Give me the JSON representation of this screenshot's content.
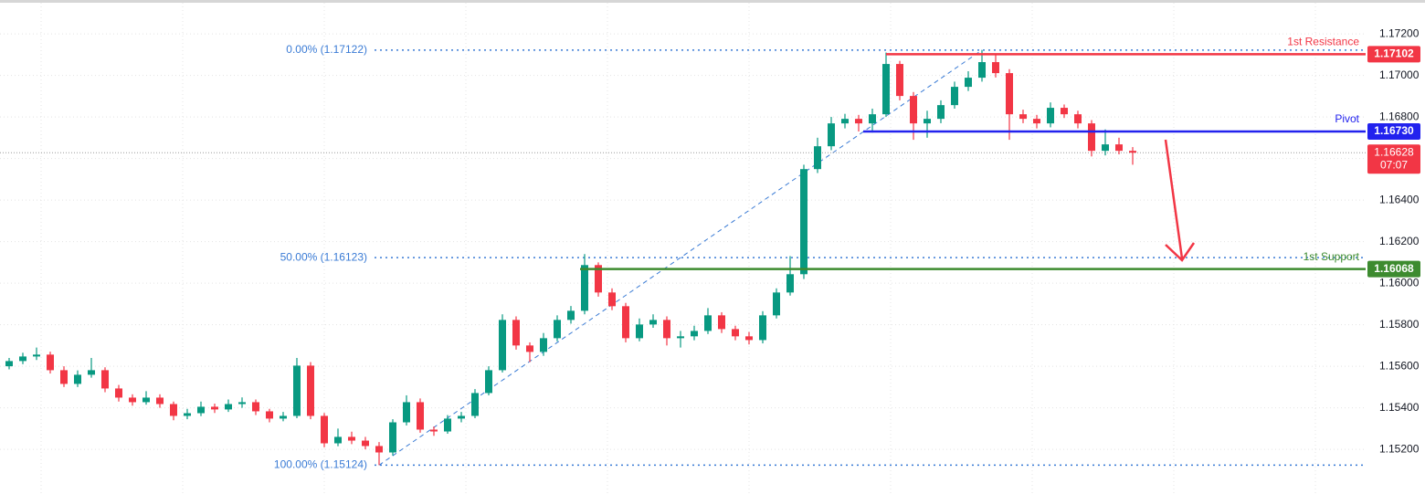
{
  "chart_data": {
    "type": "candlestick",
    "up_color": "#089981",
    "down_color": "#f23645",
    "grid": true,
    "ylim": [
      1.14985,
      1.17363
    ],
    "yticks": [
      {
        "value": 1.152,
        "label": "1.15200"
      },
      {
        "value": 1.154,
        "label": "1.15400"
      },
      {
        "value": 1.156,
        "label": "1.15600"
      },
      {
        "value": 1.158,
        "label": "1.15800"
      },
      {
        "value": 1.16,
        "label": "1.16000"
      },
      {
        "value": 1.162,
        "label": "1.16200"
      },
      {
        "value": 1.164,
        "label": "1.16400"
      },
      {
        "value": 1.166,
        "label": "1.16600"
      },
      {
        "value": 1.168,
        "label": "1.16800"
      },
      {
        "value": 1.17,
        "label": "1.17000"
      },
      {
        "value": 1.172,
        "label": "1.17200"
      }
    ],
    "open": [
      1.156,
      1.15625,
      1.15647,
      1.15656,
      1.15581,
      1.15515,
      1.15559,
      1.15581,
      1.15493,
      1.15449,
      1.15427,
      1.15449,
      1.15418,
      1.15361,
      1.15374,
      1.15405,
      1.15392,
      1.15418,
      1.15427,
      1.15383,
      1.15348,
      1.15361,
      1.15603,
      1.15361,
      1.15229,
      1.1526,
      1.15242,
      1.15216,
      1.15185,
      1.1533,
      1.15427,
      1.15295,
      1.15286,
      1.15348,
      1.15361,
      1.15471,
      1.15581,
      1.15823,
      1.157,
      1.15669,
      1.15735,
      1.15823,
      1.15867,
      1.16087,
      1.15955,
      1.15889,
      1.15735,
      1.15801,
      1.15823,
      1.15735,
      1.15744,
      1.1577,
      1.15845,
      1.15779,
      1.15744,
      1.15726,
      1.15845,
      1.15955,
      1.16043,
      1.16549,
      1.16659,
      1.16769,
      1.16791,
      1.16769,
      1.16813,
      1.17055,
      1.16901,
      1.16769,
      1.16791,
      1.16857,
      1.16945,
      1.16989,
      1.17064,
      1.17011,
      1.16813,
      1.16791,
      1.16769,
      1.16844,
      1.16813,
      1.16769,
      1.16637,
      1.16668,
      1.16637
    ],
    "high": [
      1.1564,
      1.15665,
      1.1569,
      1.1567,
      1.156,
      1.1558,
      1.1564,
      1.15595,
      1.1551,
      1.15465,
      1.1548,
      1.15465,
      1.1543,
      1.15395,
      1.1543,
      1.1542,
      1.1544,
      1.1545,
      1.1544,
      1.15395,
      1.1538,
      1.1564,
      1.1562,
      1.15375,
      1.153,
      1.15285,
      1.1526,
      1.15235,
      1.15345,
      1.1546,
      1.15445,
      1.1531,
      1.15365,
      1.1538,
      1.1549,
      1.156,
      1.1585,
      1.1584,
      1.15715,
      1.1576,
      1.15845,
      1.1589,
      1.1614,
      1.161,
      1.15975,
      1.15905,
      1.1583,
      1.1585,
      1.1584,
      1.1577,
      1.15795,
      1.1588,
      1.1586,
      1.15795,
      1.15765,
      1.15865,
      1.15975,
      1.1613,
      1.1657,
      1.167,
      1.168,
      1.16815,
      1.1681,
      1.1684,
      1.1711,
      1.1707,
      1.1692,
      1.1683,
      1.1688,
      1.1697,
      1.1702,
      1.17122,
      1.171,
      1.1703,
      1.16835,
      1.1681,
      1.1687,
      1.1686,
      1.1683,
      1.16785,
      1.1674,
      1.167,
      1.16655
    ],
    "low": [
      1.15585,
      1.1561,
      1.1563,
      1.15565,
      1.155,
      1.155,
      1.15545,
      1.15475,
      1.1543,
      1.1541,
      1.15415,
      1.154,
      1.1534,
      1.15345,
      1.1536,
      1.15375,
      1.1538,
      1.154,
      1.15365,
      1.1533,
      1.15335,
      1.1535,
      1.15345,
      1.1521,
      1.15215,
      1.15225,
      1.152,
      1.15124,
      1.1517,
      1.15315,
      1.1528,
      1.15265,
      1.15275,
      1.1533,
      1.1535,
      1.1546,
      1.1557,
      1.1568,
      1.1562,
      1.1565,
      1.1572,
      1.15805,
      1.1585,
      1.15935,
      1.1587,
      1.15715,
      1.1572,
      1.15785,
      1.157,
      1.1569,
      1.15725,
      1.15755,
      1.1576,
      1.15725,
      1.15705,
      1.1571,
      1.1583,
      1.1594,
      1.1602,
      1.1653,
      1.1664,
      1.16745,
      1.1673,
      1.16725,
      1.168,
      1.1688,
      1.1669,
      1.167,
      1.1677,
      1.1684,
      1.16925,
      1.1697,
      1.1699,
      1.1669,
      1.1677,
      1.16745,
      1.1675,
      1.16795,
      1.16745,
      1.1661,
      1.16615,
      1.1662,
      1.1657
    ],
    "close": [
      1.15625,
      1.15647,
      1.15656,
      1.15581,
      1.15515,
      1.15559,
      1.15581,
      1.15493,
      1.15449,
      1.15427,
      1.15449,
      1.15418,
      1.15361,
      1.15374,
      1.15405,
      1.15392,
      1.15418,
      1.15427,
      1.15383,
      1.15348,
      1.15361,
      1.15603,
      1.15361,
      1.15229,
      1.1526,
      1.15242,
      1.15216,
      1.15185,
      1.1533,
      1.15427,
      1.15295,
      1.15286,
      1.15348,
      1.15361,
      1.15471,
      1.15581,
      1.15823,
      1.157,
      1.15669,
      1.15735,
      1.15823,
      1.15867,
      1.16087,
      1.15955,
      1.15889,
      1.15735,
      1.15801,
      1.15823,
      1.15735,
      1.15744,
      1.1577,
      1.15845,
      1.15779,
      1.15744,
      1.15726,
      1.15845,
      1.15955,
      1.16043,
      1.16549,
      1.16659,
      1.16769,
      1.16791,
      1.16769,
      1.16813,
      1.17055,
      1.16901,
      1.16769,
      1.16791,
      1.16857,
      1.16945,
      1.16989,
      1.17064,
      1.17011,
      1.16813,
      1.16791,
      1.16769,
      1.16844,
      1.16813,
      1.16769,
      1.16637,
      1.16668,
      1.16637,
      1.16628
    ],
    "levels": [
      {
        "name": "1st Resistance",
        "price": {
          "value": 1.17102,
          "label": "1.17102"
        },
        "color": "#f23645"
      },
      {
        "name": "Pivot",
        "price": {
          "value": 1.1673,
          "label": "1.16730"
        },
        "color": "#2222ee"
      },
      {
        "name": "1st Support",
        "price": {
          "value": 1.16068,
          "label": "1.16068"
        },
        "color": "#3d8b2f"
      }
    ],
    "current": {
      "price": {
        "value": 1.16628,
        "label": "1.16628"
      },
      "countdown": "07:07",
      "color": "#f23645"
    },
    "fib_levels": [
      {
        "value": 1.17122,
        "label": "0.00% (1.17122)"
      },
      {
        "value": 1.16123,
        "label": "50.00% (1.16123)"
      },
      {
        "value": 1.15124,
        "label": "100.00% (1.15124)"
      }
    ],
    "fib_color": "#3a7bd5"
  }
}
